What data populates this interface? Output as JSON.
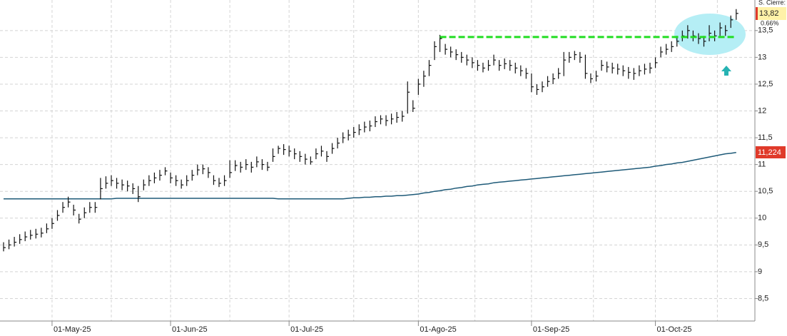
{
  "chart_data": {
    "type": "ohlc",
    "price_caption": "S. Cierre:",
    "last_close": {
      "value": 13.82,
      "label": "13,82"
    },
    "change": {
      "value": 0.66,
      "label": "0.66%"
    },
    "ma_last": {
      "value": 11.224,
      "label": "11,224"
    },
    "resistance_level": 13.38,
    "resistance_color": "#22dd22",
    "bar_color": "#111111",
    "ma_color": "#1e5a78",
    "grid": true,
    "ylim": [
      8.08,
      14.07
    ],
    "yticks": [
      {
        "value": 8.5,
        "label": "8,5"
      },
      9,
      {
        "value": 9.5,
        "label": "9,5"
      },
      10,
      {
        "value": 10.5,
        "label": "10,5"
      },
      11,
      {
        "value": 11.5,
        "label": "11,5"
      },
      12,
      {
        "value": 12.5,
        "label": "12,5"
      },
      13,
      {
        "value": 13.5,
        "label": "13,5"
      }
    ],
    "categories": [
      null,
      null,
      null,
      null,
      null,
      null,
      null,
      null,
      null,
      "01-May-25",
      null,
      null,
      null,
      null,
      null,
      null,
      null,
      null,
      null,
      null,
      null,
      null,
      null,
      null,
      null,
      null,
      null,
      null,
      null,
      null,
      null,
      "01-Jun-25",
      null,
      null,
      null,
      null,
      null,
      null,
      null,
      null,
      null,
      null,
      null,
      null,
      null,
      null,
      null,
      null,
      null,
      null,
      null,
      null,
      null,
      "01-Jul-25",
      null,
      null,
      null,
      null,
      null,
      null,
      null,
      null,
      null,
      null,
      null,
      null,
      null,
      null,
      null,
      null,
      null,
      null,
      null,
      null,
      null,
      null,
      null,
      "01-Ago-25",
      null,
      null,
      null,
      null,
      null,
      null,
      null,
      null,
      null,
      null,
      null,
      null,
      null,
      null,
      null,
      null,
      null,
      null,
      null,
      null,
      "01-Sep-25",
      null,
      null,
      null,
      null,
      null,
      null,
      null,
      null,
      null,
      null,
      null,
      null,
      null,
      null,
      null,
      null,
      null,
      null,
      null,
      null,
      null,
      null,
      "01-Oct-25",
      null,
      null,
      null,
      null,
      null,
      null,
      null,
      null,
      null,
      null,
      null,
      null,
      null,
      null,
      null
    ],
    "high": [
      9.55,
      9.6,
      9.65,
      9.7,
      9.75,
      9.78,
      9.8,
      9.82,
      9.9,
      10.0,
      10.15,
      10.3,
      10.4,
      10.25,
      10.08,
      10.2,
      10.3,
      10.3,
      10.75,
      10.78,
      10.8,
      10.75,
      10.72,
      10.7,
      10.65,
      10.6,
      10.72,
      10.8,
      10.85,
      10.9,
      10.95,
      10.85,
      10.8,
      10.72,
      10.8,
      10.9,
      11.0,
      11.0,
      10.95,
      10.8,
      10.75,
      10.8,
      11.08,
      11.08,
      11.05,
      11.1,
      11.05,
      11.15,
      11.1,
      11.05,
      11.3,
      11.35,
      11.38,
      11.35,
      11.3,
      11.25,
      11.2,
      11.15,
      11.3,
      11.35,
      11.25,
      11.4,
      11.5,
      11.6,
      11.65,
      11.7,
      11.75,
      11.8,
      11.82,
      11.9,
      11.92,
      11.92,
      11.95,
      11.98,
      12.0,
      12.55,
      12.2,
      12.6,
      12.75,
      12.95,
      13.3,
      13.42,
      13.25,
      13.2,
      13.15,
      13.1,
      13.05,
      13.0,
      12.95,
      12.9,
      12.95,
      13.05,
      12.95,
      12.98,
      12.95,
      12.9,
      12.85,
      12.8,
      12.7,
      12.5,
      12.55,
      12.65,
      12.7,
      12.8,
      13.1,
      13.1,
      13.12,
      13.1,
      13.05,
      12.7,
      12.75,
      12.95,
      12.92,
      12.9,
      12.88,
      12.85,
      12.82,
      12.8,
      12.85,
      12.88,
      12.9,
      13.0,
      13.2,
      13.25,
      13.3,
      13.4,
      13.5,
      13.6,
      13.5,
      13.45,
      13.4,
      13.6,
      13.5,
      13.65,
      13.6,
      13.78,
      13.9
    ],
    "low": [
      9.38,
      9.42,
      9.47,
      9.52,
      9.57,
      9.6,
      9.62,
      9.64,
      9.72,
      9.8,
      9.95,
      10.1,
      10.2,
      10.05,
      9.9,
      10.0,
      10.1,
      10.1,
      10.35,
      10.55,
      10.6,
      10.55,
      10.52,
      10.5,
      10.45,
      10.3,
      10.52,
      10.6,
      10.65,
      10.7,
      10.8,
      10.65,
      10.6,
      10.55,
      10.6,
      10.7,
      10.8,
      10.82,
      10.75,
      10.62,
      10.58,
      10.6,
      10.75,
      10.88,
      10.85,
      10.9,
      10.85,
      10.95,
      10.9,
      10.88,
      11.05,
      11.2,
      11.18,
      11.15,
      11.1,
      11.05,
      11.0,
      11.0,
      11.1,
      11.15,
      11.05,
      11.2,
      11.3,
      11.4,
      11.45,
      11.5,
      11.55,
      11.6,
      11.62,
      11.7,
      11.75,
      11.72,
      11.75,
      11.78,
      11.8,
      11.95,
      11.98,
      12.3,
      12.45,
      12.65,
      12.95,
      13.1,
      13.05,
      13.0,
      12.95,
      12.9,
      12.85,
      12.8,
      12.75,
      12.72,
      12.75,
      12.85,
      12.75,
      12.78,
      12.75,
      12.7,
      12.65,
      12.6,
      12.35,
      12.3,
      12.35,
      12.45,
      12.5,
      12.6,
      12.65,
      12.9,
      12.95,
      12.9,
      12.6,
      12.52,
      12.55,
      12.75,
      12.72,
      12.7,
      12.68,
      12.65,
      12.6,
      12.58,
      12.65,
      12.68,
      12.7,
      12.8,
      13.0,
      13.05,
      13.1,
      13.2,
      13.3,
      13.35,
      13.3,
      13.25,
      13.2,
      13.3,
      13.3,
      13.4,
      13.4,
      13.55,
      13.7
    ],
    "close": [
      9.45,
      9.5,
      9.55,
      9.6,
      9.65,
      9.68,
      9.7,
      9.72,
      9.8,
      9.9,
      10.05,
      10.2,
      10.3,
      10.15,
      9.98,
      10.1,
      10.2,
      10.2,
      10.55,
      10.65,
      10.7,
      10.65,
      10.62,
      10.6,
      10.55,
      10.4,
      10.62,
      10.7,
      10.75,
      10.8,
      10.88,
      10.75,
      10.7,
      10.62,
      10.7,
      10.8,
      10.9,
      10.92,
      10.85,
      10.7,
      10.65,
      10.7,
      10.85,
      10.98,
      10.95,
      11.0,
      10.95,
      11.05,
      11.0,
      10.95,
      11.15,
      11.3,
      11.28,
      11.25,
      11.2,
      11.15,
      11.1,
      11.05,
      11.2,
      11.25,
      11.15,
      11.3,
      11.4,
      11.5,
      11.55,
      11.6,
      11.65,
      11.7,
      11.72,
      11.8,
      11.85,
      11.82,
      11.85,
      11.88,
      11.9,
      12.35,
      12.05,
      12.5,
      12.65,
      12.85,
      13.2,
      13.35,
      13.15,
      13.1,
      13.05,
      13.0,
      12.95,
      12.9,
      12.85,
      12.8,
      12.85,
      12.95,
      12.85,
      12.88,
      12.85,
      12.8,
      12.75,
      12.7,
      12.45,
      12.4,
      12.45,
      12.55,
      12.6,
      12.7,
      12.95,
      13.0,
      13.05,
      13.0,
      12.7,
      12.6,
      12.65,
      12.85,
      12.82,
      12.8,
      12.78,
      12.75,
      12.72,
      12.7,
      12.75,
      12.78,
      12.8,
      12.9,
      13.1,
      13.15,
      13.2,
      13.3,
      13.4,
      13.5,
      13.4,
      13.35,
      13.3,
      13.45,
      13.4,
      13.55,
      13.5,
      13.7,
      13.82
    ],
    "ma": [
      10.36,
      10.36,
      10.36,
      10.36,
      10.36,
      10.36,
      10.36,
      10.36,
      10.36,
      10.36,
      10.36,
      10.36,
      10.36,
      10.36,
      10.36,
      10.36,
      10.36,
      10.36,
      10.36,
      10.36,
      10.36,
      10.37,
      10.37,
      10.37,
      10.37,
      10.37,
      10.37,
      10.37,
      10.37,
      10.37,
      10.37,
      10.37,
      10.37,
      10.37,
      10.37,
      10.37,
      10.37,
      10.37,
      10.37,
      10.37,
      10.37,
      10.37,
      10.37,
      10.37,
      10.37,
      10.37,
      10.37,
      10.37,
      10.37,
      10.37,
      10.37,
      10.36,
      10.36,
      10.36,
      10.36,
      10.36,
      10.36,
      10.36,
      10.36,
      10.36,
      10.36,
      10.36,
      10.36,
      10.36,
      10.37,
      10.38,
      10.38,
      10.39,
      10.39,
      10.4,
      10.4,
      10.41,
      10.41,
      10.42,
      10.42,
      10.43,
      10.44,
      10.45,
      10.47,
      10.48,
      10.5,
      10.51,
      10.53,
      10.54,
      10.56,
      10.57,
      10.59,
      10.6,
      10.62,
      10.63,
      10.64,
      10.66,
      10.67,
      10.68,
      10.69,
      10.7,
      10.71,
      10.72,
      10.73,
      10.74,
      10.75,
      10.76,
      10.77,
      10.78,
      10.79,
      10.8,
      10.81,
      10.82,
      10.83,
      10.84,
      10.85,
      10.86,
      10.87,
      10.88,
      10.89,
      10.9,
      10.91,
      10.92,
      10.93,
      10.94,
      10.95,
      10.97,
      10.98,
      11.0,
      11.01,
      11.03,
      11.04,
      11.06,
      11.08,
      11.1,
      11.12,
      11.14,
      11.16,
      11.18,
      11.2,
      11.21,
      11.224
    ]
  }
}
